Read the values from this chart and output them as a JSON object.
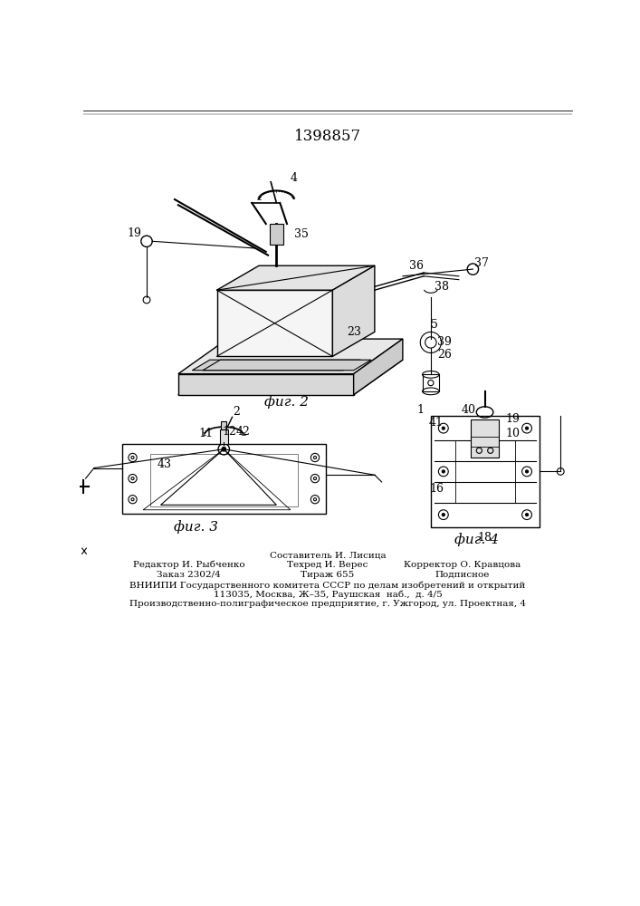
{
  "title": "1398857",
  "bg_color": "#ffffff",
  "line_color": "#000000",
  "fig2_label": "фиг. 2",
  "fig3_label": "фиг. 3",
  "fig4_label": "фиг. 4",
  "footer_col1_line1": "Редактор И. Рыбченко",
  "footer_col1_line2": "Заказ 2302/4",
  "footer_col2_line0": "Составитель И. Лисица",
  "footer_col2_line1": "Техред И. Верес",
  "footer_col2_line2": "Тираж 655",
  "footer_col3_line1": "Корректор О. Кравцова",
  "footer_col3_line2": "Подписное",
  "footer_vnipi": "ВНИИПИ Государственного комитета СССР по делам изобретений и открытий",
  "footer_addr": "113035, Москва, Ж–35, Раушская  наб.,  д. 4/5",
  "footer_prod": "Производственно-полиграфическое предприятие, г. Ужгород, ул. Проектная, 4"
}
